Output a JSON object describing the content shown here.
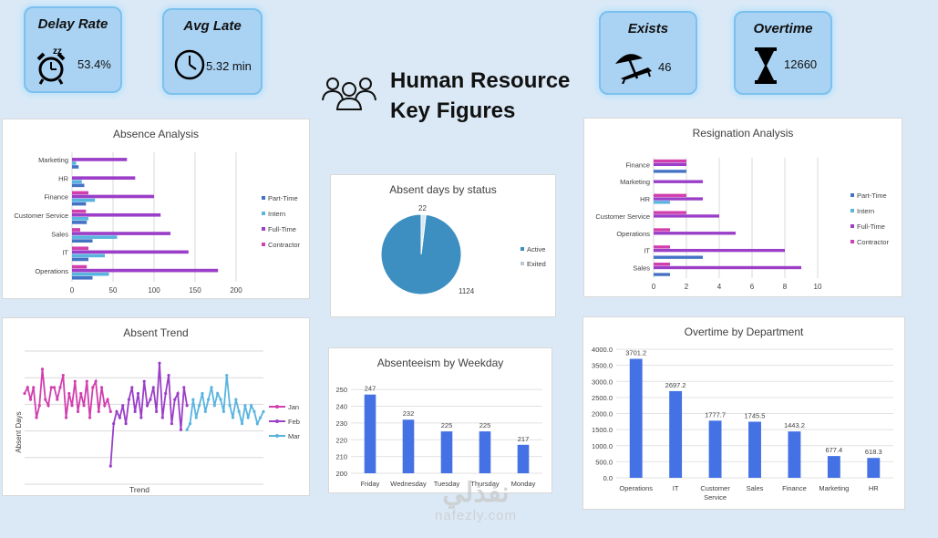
{
  "header": {
    "title_line1": "Human Resource",
    "title_line2": "Key Figures"
  },
  "kpis": {
    "delay": {
      "title": "Delay Rate",
      "value": "53.4%",
      "icon": "alarm-clock-icon"
    },
    "late": {
      "title": "Avg Late",
      "value": "5.32 min",
      "icon": "clock-icon"
    },
    "exists": {
      "title": "Exists",
      "value": "46",
      "icon": "beach-umbrella-icon"
    },
    "overtime": {
      "title": "Overtime",
      "value": "12660",
      "icon": "hourglass-icon"
    }
  },
  "watermark": {
    "line1": "نفذلي",
    "line2": "nafezly.com"
  },
  "chart_data": [
    {
      "id": "absence",
      "type": "bar",
      "orientation": "horizontal",
      "title": "Absence Analysis",
      "categories": [
        "Operations",
        "IT",
        "Sales",
        "Customer Service",
        "Finance",
        "HR",
        "Marketing"
      ],
      "series": [
        {
          "name": "Part-Time",
          "color": "#4472c4",
          "values": [
            25,
            20,
            25,
            18,
            17,
            15,
            8
          ]
        },
        {
          "name": "Intern",
          "color": "#5ab4e0",
          "values": [
            45,
            40,
            55,
            20,
            28,
            12,
            5
          ]
        },
        {
          "name": "Full-Time",
          "color": "#9b3fc9",
          "values": [
            178,
            142,
            120,
            108,
            100,
            77,
            67
          ]
        },
        {
          "name": "Contractor",
          "color": "#d13fae",
          "values": [
            18,
            20,
            10,
            17,
            20,
            0,
            0
          ]
        }
      ],
      "xticks": [
        "0",
        "50",
        "100",
        "150",
        "200"
      ],
      "xlim": [
        0,
        220
      ]
    },
    {
      "id": "resignation",
      "type": "bar",
      "orientation": "horizontal",
      "title": "Resignation Analysis",
      "categories": [
        "Sales",
        "IT",
        "Operations",
        "Customer Service",
        "HR",
        "Marketing",
        "Finance"
      ],
      "series": [
        {
          "name": "Part-Time",
          "color": "#4472c4",
          "values": [
            1,
            3,
            0,
            0,
            0,
            0,
            2
          ]
        },
        {
          "name": "Intern",
          "color": "#5ab4e0",
          "values": [
            0,
            0,
            0,
            0,
            1,
            0,
            0
          ]
        },
        {
          "name": "Full-Time",
          "color": "#9b3fc9",
          "values": [
            9,
            8,
            5,
            4,
            3,
            3,
            2
          ]
        },
        {
          "name": "Contractor",
          "color": "#d13fae",
          "values": [
            1,
            1,
            1,
            2,
            2,
            0,
            2
          ]
        }
      ],
      "xticks": [
        "0",
        "2",
        "4",
        "6",
        "8",
        "10"
      ],
      "xlim": [
        0,
        11
      ]
    },
    {
      "id": "status",
      "type": "pie",
      "title": "Absent days by status",
      "labels": [
        "Active",
        "Exited"
      ],
      "values": [
        1124,
        22
      ],
      "colors": [
        "#3d8fc2",
        "#d9e8f5"
      ]
    },
    {
      "id": "weekday",
      "type": "bar",
      "title": "Absenteeism by Weekday",
      "categories": [
        "Friday",
        "Wednesday",
        "Tuesday",
        "Thursday",
        "Monday"
      ],
      "values": [
        247,
        232,
        225,
        225,
        217
      ],
      "yticks": [
        "200",
        "210",
        "220",
        "230",
        "240",
        "250"
      ],
      "ylim": [
        200,
        255
      ],
      "color": "#4472e4"
    },
    {
      "id": "overtime",
      "type": "bar",
      "title": "Overtime by Department",
      "categories": [
        "Operations",
        "IT",
        "Customer Service",
        "Sales",
        "Finance",
        "Marketing",
        "HR"
      ],
      "values": [
        3701.2,
        2697.2,
        1777.7,
        1745.5,
        1443.2,
        677.4,
        618.3
      ],
      "labels": [
        "3701.2",
        "2697.2",
        "1777.7",
        "1745.5",
        "1443.2",
        "677.4",
        "618.3"
      ],
      "yticks": [
        "0.0",
        "500.0",
        "1000.0",
        "1500.0",
        "2000.0",
        "2500.0",
        "3000.0",
        "3500.0",
        "4000.0"
      ],
      "ylim": [
        0,
        4000
      ],
      "color": "#4472e4"
    },
    {
      "id": "trend",
      "type": "line",
      "title": "Absent Trend",
      "xlabel": "Trend",
      "ylabel": "Absent Days",
      "series": [
        {
          "name": "Jan",
          "color": "#d13fae",
          "values": [
            15,
            16,
            14,
            16,
            11,
            13,
            19,
            14,
            13,
            16,
            16,
            14,
            16,
            18,
            11,
            15,
            13,
            17,
            12,
            15,
            13,
            17,
            11,
            16,
            17,
            12,
            16,
            13,
            14,
            12
          ]
        },
        {
          "name": "Feb",
          "color": "#9b3fc9",
          "values": [
            3,
            10,
            12,
            11,
            13,
            10,
            14,
            16,
            12,
            15,
            11,
            17,
            13,
            14,
            16,
            12,
            20,
            11,
            15,
            18,
            10,
            14,
            15,
            9,
            16,
            13
          ]
        },
        {
          "name": "Mar",
          "color": "#5ab4e0",
          "values": [
            9,
            10,
            14,
            11,
            13,
            15,
            12,
            14,
            16,
            13,
            15,
            14,
            12,
            18,
            13,
            11,
            14,
            12,
            10,
            13,
            11,
            13,
            12,
            10,
            11,
            12
          ]
        }
      ],
      "ylim": [
        0,
        22
      ]
    }
  ]
}
